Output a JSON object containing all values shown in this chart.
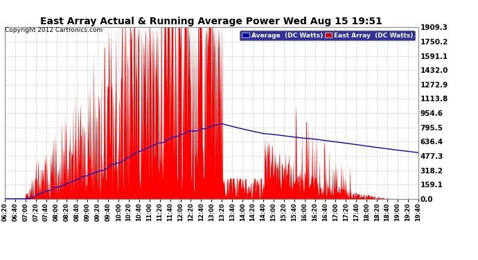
{
  "title": "East Array Actual & Running Average Power Wed Aug 15 19:51",
  "copyright": "Copyright 2012 Cartronics.com",
  "legend_avg": "Average  (DC Watts)",
  "legend_east": "East Array  (DC Watts)",
  "yticks": [
    0.0,
    159.1,
    318.2,
    477.3,
    636.4,
    795.5,
    954.6,
    1113.8,
    1272.9,
    1432.0,
    1591.1,
    1750.2,
    1909.3
  ],
  "ylim": [
    0,
    1909.3
  ],
  "bg_color": "#ffffff",
  "grid_color": "#bbbbbb",
  "fill_color": "#ff0000",
  "avg_line_color": "#0000cc",
  "title_color": "#000000",
  "x_labels": [
    "06:20",
    "06:40",
    "07:00",
    "07:20",
    "07:40",
    "08:00",
    "08:20",
    "08:40",
    "09:00",
    "09:20",
    "09:40",
    "10:00",
    "10:20",
    "10:40",
    "11:00",
    "11:20",
    "11:40",
    "12:00",
    "12:20",
    "12:40",
    "13:00",
    "13:20",
    "13:40",
    "14:00",
    "14:20",
    "14:40",
    "15:00",
    "15:20",
    "15:40",
    "16:00",
    "16:20",
    "16:40",
    "17:00",
    "17:20",
    "17:40",
    "18:00",
    "18:20",
    "18:40",
    "19:00",
    "19:20",
    "19:40"
  ],
  "legend_avg_bg": "#0000aa",
  "legend_east_bg": "#cc0000"
}
